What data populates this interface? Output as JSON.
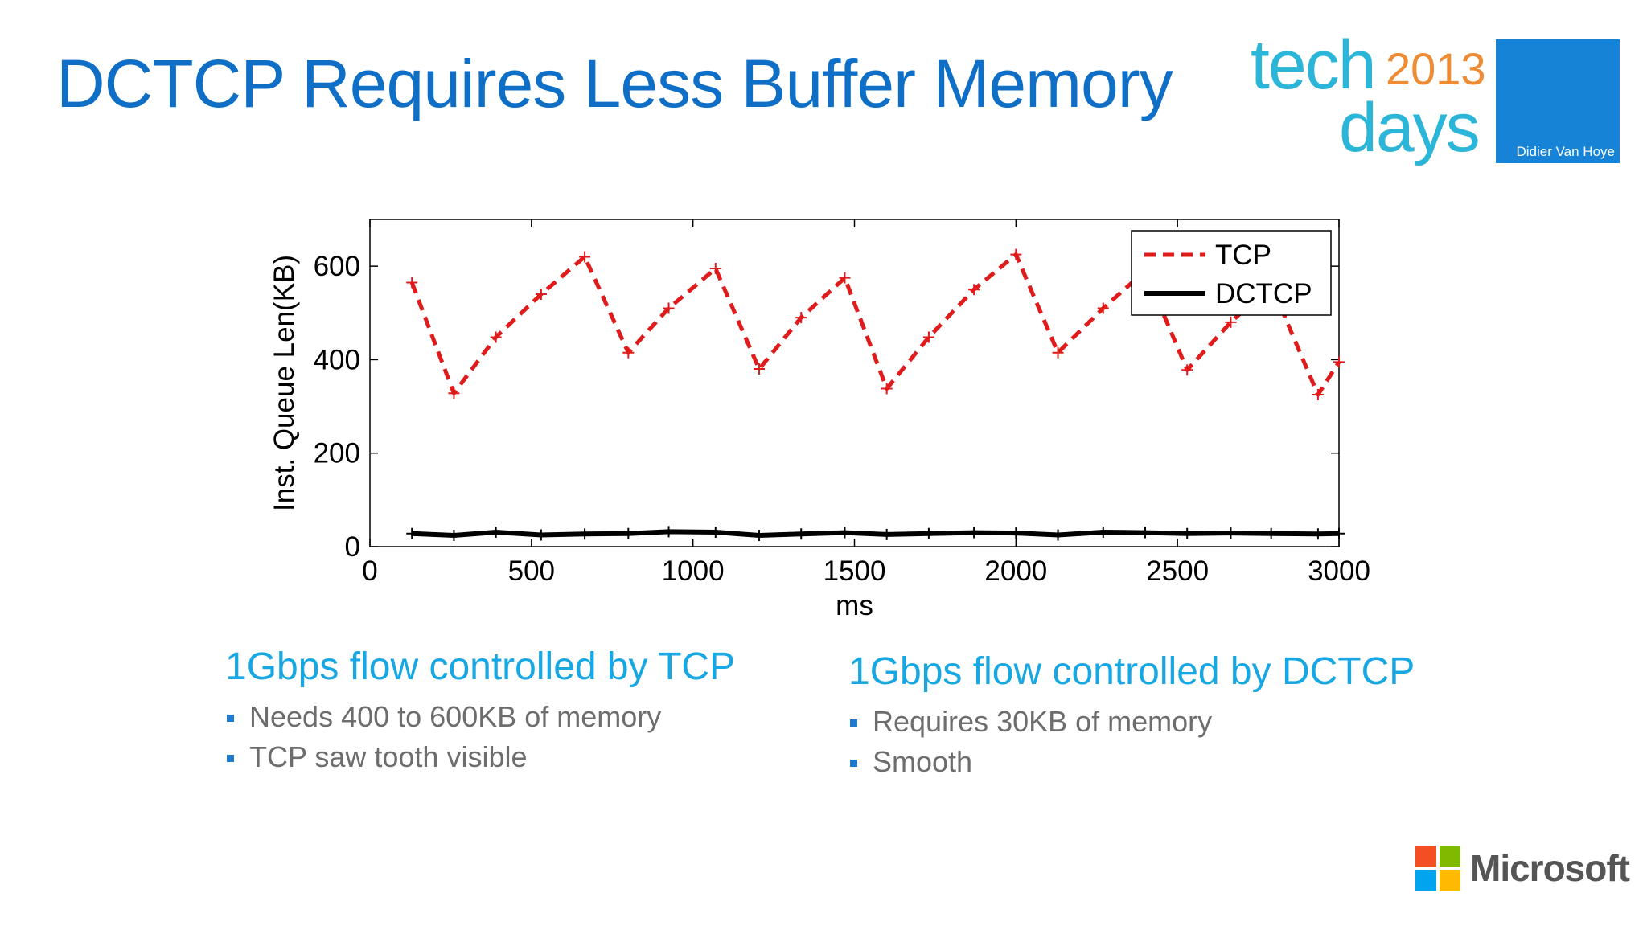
{
  "slide": {
    "title": "DCTCP Requires Less Buffer Memory"
  },
  "logo": {
    "tech": "tech",
    "year": "2013",
    "days": "days",
    "presenter": "Didier Van Hoye"
  },
  "chart_data": {
    "type": "line",
    "title": "",
    "xlabel": "ms",
    "ylabel": "Inst. Queue Len(KB)",
    "xlim": [
      0,
      3000
    ],
    "ylim": [
      0,
      700
    ],
    "xticks": [
      0,
      500,
      1000,
      1500,
      2000,
      2500,
      3000
    ],
    "yticks": [
      0,
      200,
      400,
      600
    ],
    "grid": false,
    "legend": "top-right",
    "series": [
      {
        "name": "TCP",
        "color": "#e01b1b",
        "style": "dashed",
        "marker": "plus",
        "points": [
          [
            130,
            565
          ],
          [
            260,
            328
          ],
          [
            390,
            448
          ],
          [
            530,
            540
          ],
          [
            665,
            620
          ],
          [
            800,
            415
          ],
          [
            925,
            510
          ],
          [
            1070,
            595
          ],
          [
            1205,
            380
          ],
          [
            1335,
            490
          ],
          [
            1470,
            575
          ],
          [
            1600,
            338
          ],
          [
            1730,
            448
          ],
          [
            1870,
            550
          ],
          [
            2000,
            625
          ],
          [
            2130,
            415
          ],
          [
            2270,
            510
          ],
          [
            2400,
            590
          ],
          [
            2530,
            378
          ],
          [
            2665,
            480
          ],
          [
            2790,
            560
          ],
          [
            2935,
            325
          ],
          [
            3000,
            395
          ]
        ]
      },
      {
        "name": "DCTCP",
        "color": "#000000",
        "style": "solid",
        "marker": "plus",
        "points": [
          [
            130,
            28
          ],
          [
            260,
            24
          ],
          [
            390,
            31
          ],
          [
            530,
            25
          ],
          [
            665,
            27
          ],
          [
            800,
            28
          ],
          [
            925,
            32
          ],
          [
            1070,
            31
          ],
          [
            1205,
            24
          ],
          [
            1335,
            27
          ],
          [
            1470,
            30
          ],
          [
            1600,
            26
          ],
          [
            1730,
            28
          ],
          [
            1870,
            30
          ],
          [
            2000,
            29
          ],
          [
            2130,
            25
          ],
          [
            2270,
            31
          ],
          [
            2400,
            30
          ],
          [
            2530,
            28
          ],
          [
            2665,
            29
          ],
          [
            2790,
            28
          ],
          [
            2935,
            27
          ],
          [
            3000,
            28
          ]
        ]
      }
    ]
  },
  "left_column": {
    "heading": "1Gbps flow controlled by TCP",
    "bullets": [
      "Needs 400 to 600KB of memory",
      "TCP saw tooth visible"
    ]
  },
  "right_column": {
    "heading": "1Gbps flow controlled by DCTCP",
    "bullets": [
      "Requires 30KB of memory",
      "Smooth"
    ]
  },
  "microsoft": {
    "word": "Microsoft",
    "colors": [
      "#f25022",
      "#7fba00",
      "#00a4ef",
      "#ffb900"
    ]
  }
}
